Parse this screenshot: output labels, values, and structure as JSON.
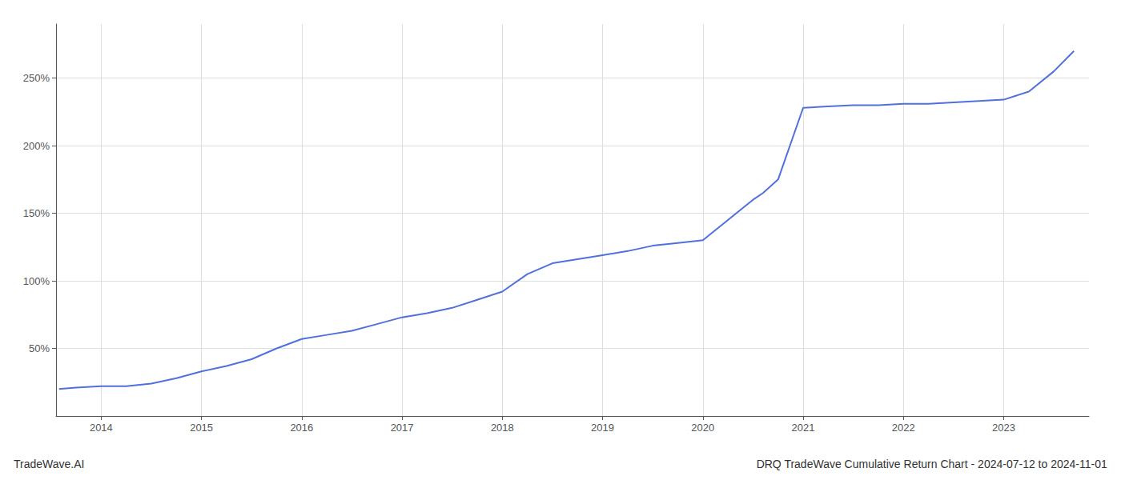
{
  "chart_data": {
    "type": "line",
    "title": "DRQ TradeWave Cumulative Return Chart - 2024-07-12 to 2024-11-01",
    "annotations": [
      "TradeWave.AI"
    ],
    "x": [
      2013.58,
      2013.75,
      2014.0,
      2014.25,
      2014.5,
      2014.75,
      2015.0,
      2015.25,
      2015.5,
      2015.75,
      2016.0,
      2016.25,
      2016.5,
      2016.75,
      2017.0,
      2017.25,
      2017.5,
      2017.75,
      2018.0,
      2018.25,
      2018.5,
      2018.75,
      2019.0,
      2019.25,
      2019.5,
      2019.75,
      2020.0,
      2020.25,
      2020.5,
      2020.6,
      2020.75,
      2021.0,
      2021.25,
      2021.5,
      2021.75,
      2022.0,
      2022.25,
      2022.5,
      2022.75,
      2023.0,
      2023.25,
      2023.5,
      2023.7
    ],
    "values": [
      20,
      21,
      22,
      22,
      24,
      28,
      33,
      37,
      42,
      50,
      57,
      60,
      63,
      68,
      73,
      76,
      80,
      86,
      92,
      105,
      113,
      116,
      119,
      122,
      126,
      128,
      130,
      145,
      160,
      165,
      175,
      228,
      229,
      230,
      230,
      231,
      231,
      232,
      233,
      234,
      240,
      255,
      270
    ],
    "xlim": [
      2013.55,
      2023.85
    ],
    "xticks": [
      2014,
      2015,
      2016,
      2017,
      2018,
      2019,
      2020,
      2021,
      2022,
      2023
    ],
    "ylim": [
      0,
      290
    ],
    "yticks": [
      {
        "value": 50,
        "label": "50%"
      },
      {
        "value": 100,
        "label": "100%"
      },
      {
        "value": 150,
        "label": "150%"
      },
      {
        "value": 200,
        "label": "200%"
      },
      {
        "value": 250,
        "label": "250%"
      }
    ],
    "grid": true
  }
}
